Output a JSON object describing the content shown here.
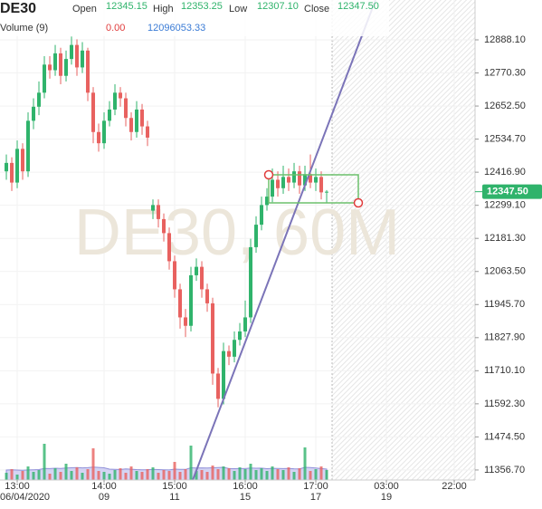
{
  "chart_data": {
    "type": "candlestick",
    "symbol": "DE30",
    "watermark": "DE30, 60M",
    "header": {
      "items": [
        {
          "label": "Open",
          "text": "12345.15"
        },
        {
          "label": "High",
          "text": "12353.25"
        },
        {
          "label": "Low",
          "text": "12307.10"
        },
        {
          "label": "Close",
          "text": "12347.50"
        }
      ],
      "volume_label": "Volume (9)",
      "volume_change": "0.00",
      "volume_ma_text": "12096053.33"
    },
    "up_color": "#2fb36b",
    "down_color": "#e8615f",
    "volume_ma_color": "#b9b9ec",
    "open": [
      12420,
      12450,
      12380,
      12500,
      12420,
      12600,
      12650,
      12700,
      12800,
      12780,
      12840,
      12760,
      12820,
      12870,
      12790,
      12850,
      12700,
      12560,
      12520,
      12600,
      12640,
      12700,
      12680,
      12610,
      12560,
      12640,
      12580,
      12280,
      12300,
      12250,
      12200,
      12100,
      12000,
      11900,
      11870,
      12050,
      12080,
      12000,
      11950,
      11700,
      11610,
      11780,
      11760,
      11820,
      11850,
      11900,
      12150,
      12230,
      12300,
      12330,
      12390,
      12360,
      12400,
      12380,
      12420,
      12370,
      12410,
      12380,
      12400,
      12345.15
    ],
    "high": [
      12480,
      12470,
      12530,
      12520,
      12630,
      12680,
      12740,
      12830,
      12830,
      12870,
      12860,
      12850,
      12900,
      12890,
      12880,
      12860,
      12720,
      12590,
      12630,
      12670,
      12730,
      12720,
      12700,
      12630,
      12670,
      12660,
      12600,
      12320,
      12320,
      12270,
      12220,
      12120,
      12020,
      11930,
      12080,
      12110,
      12100,
      12020,
      11970,
      11720,
      11810,
      11800,
      11850,
      11880,
      11960,
      12180,
      12260,
      12330,
      12360,
      12430,
      12420,
      12440,
      12430,
      12450,
      12440,
      12440,
      12480,
      12430,
      12420,
      12353.25
    ],
    "low": [
      12390,
      12350,
      12360,
      12390,
      12400,
      12570,
      12620,
      12680,
      12750,
      12760,
      12730,
      12740,
      12800,
      12760,
      12770,
      12670,
      12520,
      12490,
      12500,
      12580,
      12620,
      12650,
      12580,
      12530,
      12540,
      12550,
      12510,
      12250,
      12220,
      12170,
      12070,
      11970,
      11860,
      11830,
      11850,
      12030,
      11970,
      11920,
      11660,
      11580,
      11590,
      11730,
      11740,
      11800,
      11830,
      11880,
      12130,
      12210,
      12280,
      12310,
      12330,
      12340,
      12350,
      12360,
      12340,
      12350,
      12360,
      12350,
      12320,
      12307.1
    ],
    "close": [
      12450,
      12380,
      12500,
      12420,
      12600,
      12650,
      12700,
      12800,
      12780,
      12840,
      12760,
      12820,
      12870,
      12790,
      12850,
      12700,
      12560,
      12520,
      12600,
      12640,
      12700,
      12680,
      12610,
      12560,
      12640,
      12580,
      12540,
      12300,
      12250,
      12200,
      12100,
      12000,
      11900,
      11870,
      12050,
      12080,
      12000,
      11950,
      11700,
      11610,
      11780,
      11760,
      11820,
      11850,
      11900,
      12150,
      12230,
      12300,
      12330,
      12390,
      12360,
      12400,
      12380,
      12420,
      12370,
      12410,
      12380,
      12400,
      12345.15,
      12347.5
    ],
    "volume": [
      8000000,
      12000000,
      6000000,
      10000000,
      15000000,
      9000000,
      11000000,
      40000000,
      7000000,
      13000000,
      9000000,
      18000000,
      10000000,
      14000000,
      8000000,
      12000000,
      35000000,
      10000000,
      9000000,
      7000000,
      11000000,
      13000000,
      8000000,
      15000000,
      10000000,
      9000000,
      12000000,
      14000000,
      8000000,
      11000000,
      10000000,
      20000000,
      9000000,
      12000000,
      38000000,
      10000000,
      11000000,
      9000000,
      16000000,
      12000000,
      15000000,
      13000000,
      10000000,
      14000000,
      12000000,
      18000000,
      11000000,
      13000000,
      10000000,
      15000000,
      12000000,
      11000000,
      14000000,
      9000000,
      13000000,
      36000000,
      10000000,
      12000000,
      15000000,
      11000000
    ],
    "volume_ma": [
      11000000,
      11200000,
      11000000,
      10800000,
      11100000,
      11300000,
      11500000,
      12800000,
      12600000,
      13000000,
      12800000,
      13200000,
      13500000,
      13700000,
      13400000,
      13600000,
      14200000,
      13900000,
      13500000,
      12000000,
      11800000,
      11600000,
      12200000,
      11900000,
      11500000,
      11300000,
      11400000,
      11700000,
      11500000,
      11300000,
      11100000,
      12000000,
      11800000,
      11700000,
      13500000,
      13300000,
      13400000,
      13200000,
      13500000,
      13800000,
      14000000,
      12600000,
      12500000,
      12700000,
      12600000,
      13200000,
      13000000,
      13100000,
      12500000,
      12900000,
      12800000,
      12600000,
      12700000,
      12400000,
      12300000,
      14000000,
      13700000,
      13200000,
      12600000,
      12096053.33
    ],
    "ylim": [
      11321,
      13030
    ],
    "vlim": [
      0,
      70000000
    ],
    "xlim": [
      -1.17,
      86.33
    ],
    "yticks": [
      {
        "value": 12888.1,
        "label": "12888.10"
      },
      {
        "value": 12770.3,
        "label": "12770.30"
      },
      {
        "value": 12652.5,
        "label": "12652.50"
      },
      {
        "value": 12534.7,
        "label": "12534.70"
      },
      {
        "value": 12416.9,
        "label": "12416.90"
      },
      {
        "value": 12299.1,
        "label": "12299.10"
      },
      {
        "value": 12181.3,
        "label": "12181.30"
      },
      {
        "value": 12063.5,
        "label": "12063.50"
      },
      {
        "value": 11945.7,
        "label": "11945.70"
      },
      {
        "value": 11827.9,
        "label": "11827.90"
      },
      {
        "value": 11710.1,
        "label": "11710.10"
      },
      {
        "value": 11592.3,
        "label": "11592.30"
      },
      {
        "value": 11474.5,
        "label": "11474.50"
      },
      {
        "value": 11356.7,
        "label": "11356.70"
      }
    ],
    "xticks": [
      {
        "value": 2,
        "label": "13:00"
      },
      {
        "value": 18,
        "label": "14:00"
      },
      {
        "value": 31,
        "label": "15:00"
      },
      {
        "value": 44,
        "label": "16:00"
      },
      {
        "value": 57,
        "label": "17:00"
      },
      {
        "value": 70,
        "label": "03:00"
      },
      {
        "value": 82.5,
        "label": "22:00"
      }
    ],
    "xticks_dates": [
      {
        "value": 2,
        "label": "06/04/2020"
      },
      {
        "value": 18,
        "label": "09"
      },
      {
        "value": 31,
        "label": "11"
      },
      {
        "value": 44,
        "label": "15"
      },
      {
        "value": 57,
        "label": "17"
      },
      {
        "value": 70,
        "label": "19"
      }
    ],
    "last_price": {
      "value": 12347.5,
      "label": "12347.50"
    },
    "grid": true
  }
}
